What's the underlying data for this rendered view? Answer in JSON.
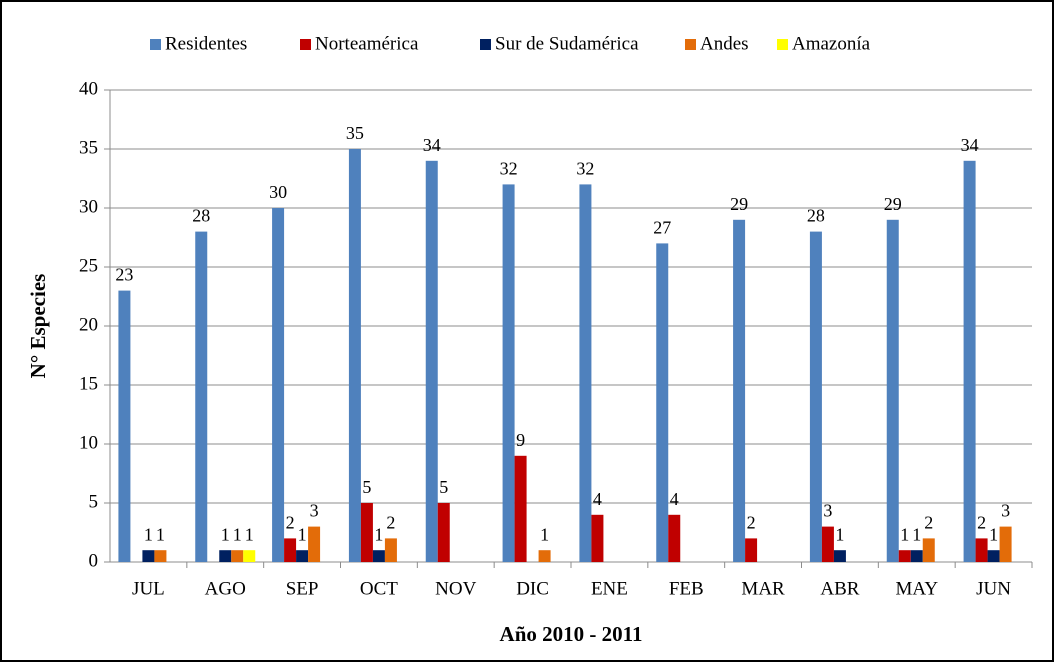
{
  "chart_data": {
    "type": "bar",
    "categories": [
      "JUL",
      "AGO",
      "SEP",
      "OCT",
      "NOV",
      "DIC",
      "ENE",
      "FEB",
      "MAR",
      "ABR",
      "MAY",
      "JUN"
    ],
    "series": [
      {
        "name": "Residentes",
        "color": "#4f81bd",
        "values": [
          23,
          28,
          30,
          35,
          34,
          32,
          32,
          27,
          29,
          28,
          29,
          34
        ]
      },
      {
        "name": "Norteamérica",
        "color": "#c00000",
        "values": [
          null,
          null,
          2,
          5,
          5,
          9,
          4,
          4,
          2,
          3,
          1,
          2
        ]
      },
      {
        "name": "Sur de Sudamérica",
        "color": "#002060",
        "values": [
          1,
          1,
          1,
          1,
          null,
          null,
          null,
          null,
          null,
          1,
          1,
          1
        ]
      },
      {
        "name": "Andes",
        "color": "#e36c09",
        "values": [
          1,
          1,
          3,
          2,
          null,
          1,
          null,
          null,
          null,
          null,
          2,
          3
        ]
      },
      {
        "name": "Amazonía",
        "color": "#ffff00",
        "values": [
          null,
          1,
          null,
          null,
          null,
          null,
          null,
          null,
          null,
          null,
          null,
          null
        ]
      }
    ],
    "xlabel": "Año 2010 - 2011",
    "ylabel": "N° Especies",
    "ylim": [
      0,
      40
    ],
    "yticks": [
      0,
      5,
      10,
      15,
      20,
      25,
      30,
      35,
      40
    ],
    "grid": true,
    "legend": "top"
  }
}
